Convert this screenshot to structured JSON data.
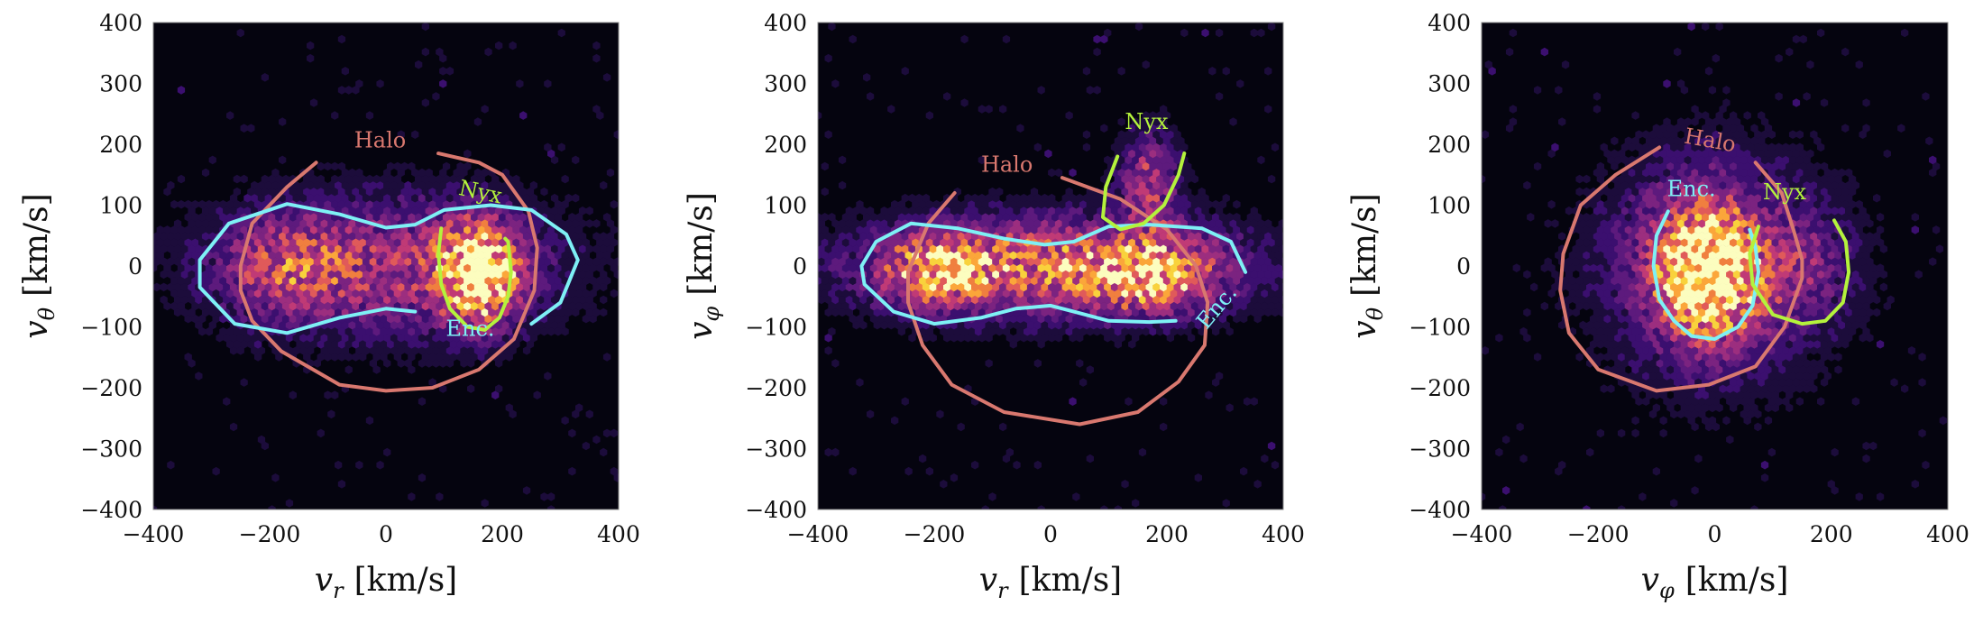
{
  "colors": {
    "background": "#05040f",
    "halo": "#d9786f",
    "enc": "#7ef0f5",
    "nyx": "#b4f23c",
    "colormap": [
      "#05040f",
      "#1c0c3b",
      "#3b0f6f",
      "#5d1a7d",
      "#7b2380",
      "#9c2e7f",
      "#c03a76",
      "#e05a5a",
      "#f07f3f",
      "#fba63a",
      "#f9d23c",
      "#fcfdbf"
    ]
  },
  "chart_data": [
    {
      "type": "heatmap",
      "subtype": "hexbin-with-contours",
      "xlabel_var": "v",
      "xlabel_sub": "r",
      "xlabel_unit": "[km/s]",
      "ylabel_var": "v",
      "ylabel_sub": "θ",
      "ylabel_unit": "[km/s]",
      "xlim": [
        -400,
        400
      ],
      "ylim": [
        -400,
        400
      ],
      "xticks": [
        "−400",
        "−200",
        "0",
        "200",
        "400"
      ],
      "yticks": [
        "400",
        "300",
        "200",
        "100",
        "0",
        "−100",
        "−200",
        "−300",
        "−400"
      ],
      "density_components": [
        {
          "cx": 0,
          "cy": 0,
          "sx": 200,
          "sy": 80,
          "w": 0.45
        },
        {
          "cx": 160,
          "cy": -10,
          "sx": 45,
          "sy": 55,
          "w": 1.0
        },
        {
          "cx": -170,
          "cy": 0,
          "sx": 70,
          "sy": 50,
          "w": 0.35
        }
      ],
      "contours": [
        {
          "name": "Halo",
          "label": "Halo",
          "color_key": "halo",
          "points": [
            [
              -120,
              170
            ],
            [
              -170,
              130
            ],
            [
              -230,
              70
            ],
            [
              -250,
              0
            ],
            [
              -250,
              -40
            ],
            [
              -230,
              -90
            ],
            [
              -180,
              -140
            ],
            [
              -80,
              -195
            ],
            [
              0,
              -205
            ],
            [
              80,
              -200
            ],
            [
              160,
              -170
            ],
            [
              220,
              -120
            ],
            [
              255,
              -40
            ],
            [
              260,
              30
            ],
            [
              245,
              90
            ],
            [
              200,
              150
            ],
            [
              160,
              170
            ],
            [
              90,
              185
            ]
          ],
          "label_pos": [
            -10,
            195
          ]
        },
        {
          "name": "Enc.",
          "label": "Enc.",
          "color_key": "enc",
          "points": [
            [
              50,
              -75
            ],
            [
              0,
              -70
            ],
            [
              -80,
              -85
            ],
            [
              -170,
              -110
            ],
            [
              -260,
              -95
            ],
            [
              -320,
              -35
            ],
            [
              -320,
              10
            ],
            [
              -270,
              70
            ],
            [
              -170,
              102
            ],
            [
              -80,
              85
            ],
            [
              0,
              63
            ],
            [
              50,
              68
            ],
            [
              100,
              92
            ],
            [
              180,
              100
            ],
            [
              250,
              92
            ],
            [
              310,
              52
            ],
            [
              330,
              10
            ],
            [
              300,
              -60
            ],
            [
              250,
              -95
            ]
          ],
          "label_pos": [
            145,
            -115
          ]
        },
        {
          "name": "Nyx",
          "label": "Nyx",
          "color_key": "nyx",
          "points": [
            [
              95,
              62
            ],
            [
              90,
              20
            ],
            [
              95,
              -30
            ],
            [
              110,
              -70
            ],
            [
              140,
              -100
            ],
            [
              170,
              -105
            ],
            [
              195,
              -85
            ],
            [
              210,
              -50
            ],
            [
              215,
              -10
            ],
            [
              210,
              40
            ],
            [
              205,
              45
            ]
          ],
          "label_pos": [
            160,
            110
          ]
        }
      ]
    },
    {
      "type": "heatmap",
      "subtype": "hexbin-with-contours",
      "xlabel_var": "v",
      "xlabel_sub": "r",
      "xlabel_unit": "[km/s]",
      "ylabel_var": "v",
      "ylabel_sub": "φ",
      "ylabel_unit": "[km/s]",
      "xlim": [
        -400,
        400
      ],
      "ylim": [
        -400,
        400
      ],
      "xticks": [
        "−400",
        "−200",
        "0",
        "200",
        "400"
      ],
      "yticks": [
        "400",
        "300",
        "200",
        "100",
        "0",
        "−100",
        "−200",
        "−300",
        "−400"
      ],
      "density_components": [
        {
          "cx": 0,
          "cy": 0,
          "sx": 220,
          "sy": 55,
          "w": 0.7
        },
        {
          "cx": -200,
          "cy": -10,
          "sx": 60,
          "sy": 40,
          "w": 0.5
        },
        {
          "cx": 180,
          "cy": -20,
          "sx": 70,
          "sy": 40,
          "w": 0.5
        },
        {
          "cx": 170,
          "cy": 140,
          "sx": 35,
          "sy": 60,
          "w": 0.45
        }
      ],
      "contours": [
        {
          "name": "Halo",
          "label": "Halo",
          "color_key": "halo",
          "points": [
            [
              -165,
              120
            ],
            [
              -210,
              70
            ],
            [
              -245,
              -10
            ],
            [
              -245,
              -60
            ],
            [
              -220,
              -130
            ],
            [
              -170,
              -195
            ],
            [
              -80,
              -240
            ],
            [
              50,
              -260
            ],
            [
              150,
              -240
            ],
            [
              220,
              -190
            ],
            [
              265,
              -130
            ],
            [
              270,
              -60
            ],
            [
              250,
              0
            ],
            [
              200,
              60
            ],
            [
              120,
              110
            ],
            [
              20,
              145
            ]
          ],
          "label_pos": [
            -75,
            155
          ]
        },
        {
          "name": "Enc.",
          "label": "Enc.",
          "color_key": "enc",
          "points": [
            [
              215,
              -90
            ],
            [
              170,
              -92
            ],
            [
              100,
              -90
            ],
            [
              40,
              -75
            ],
            [
              0,
              -65
            ],
            [
              -60,
              -70
            ],
            [
              -120,
              -85
            ],
            [
              -200,
              -95
            ],
            [
              -270,
              -75
            ],
            [
              -320,
              -30
            ],
            [
              -325,
              0
            ],
            [
              -300,
              40
            ],
            [
              -240,
              70
            ],
            [
              -160,
              62
            ],
            [
              -80,
              45
            ],
            [
              -10,
              35
            ],
            [
              40,
              40
            ],
            [
              100,
              65
            ],
            [
              170,
              68
            ],
            [
              260,
              62
            ],
            [
              310,
              40
            ],
            [
              335,
              -10
            ]
          ],
          "label_pos": [
            295,
            -75
          ]
        },
        {
          "name": "Nyx",
          "label": "Nyx",
          "color_key": "nyx",
          "points": [
            [
              115,
              180
            ],
            [
              95,
              130
            ],
            [
              90,
              80
            ],
            [
              120,
              60
            ],
            [
              160,
              70
            ],
            [
              195,
              100
            ],
            [
              220,
              150
            ],
            [
              230,
              185
            ]
          ],
          "label_pos": [
            165,
            225
          ]
        }
      ]
    },
    {
      "type": "heatmap",
      "subtype": "hexbin-with-contours",
      "xlabel_var": "v",
      "xlabel_sub": "φ",
      "xlabel_unit": "[km/s]",
      "ylabel_var": "v",
      "ylabel_sub": "θ",
      "ylabel_unit": "[km/s]",
      "xlim": [
        -400,
        400
      ],
      "ylim": [
        -400,
        400
      ],
      "xticks": [
        "−400",
        "−200",
        "0",
        "200",
        "400"
      ],
      "yticks": [
        "400",
        "300",
        "200",
        "100",
        "0",
        "−100",
        "−200",
        "−300",
        "−400"
      ],
      "density_components": [
        {
          "cx": -15,
          "cy": -10,
          "sx": 60,
          "sy": 75,
          "w": 1.0
        },
        {
          "cx": 0,
          "cy": 0,
          "sx": 140,
          "sy": 130,
          "w": 0.35
        },
        {
          "cx": 150,
          "cy": 0,
          "sx": 60,
          "sy": 60,
          "w": 0.2
        }
      ],
      "contours": [
        {
          "name": "Halo",
          "label": "Halo",
          "color_key": "halo",
          "points": [
            [
              -95,
              195
            ],
            [
              -170,
              150
            ],
            [
              -230,
              100
            ],
            [
              -260,
              20
            ],
            [
              -265,
              -40
            ],
            [
              -250,
              -110
            ],
            [
              -200,
              -170
            ],
            [
              -100,
              -205
            ],
            [
              -10,
              -195
            ],
            [
              70,
              -165
            ],
            [
              120,
              -100
            ],
            [
              150,
              -20
            ],
            [
              150,
              10
            ],
            [
              135,
              60
            ],
            [
              115,
              120
            ],
            [
              70,
              170
            ]
          ],
          "label_pos": [
            -10,
            195
          ]
        },
        {
          "name": "Enc.",
          "label": "Enc.",
          "color_key": "enc",
          "points": [
            [
              -80,
              90
            ],
            [
              -100,
              50
            ],
            [
              -105,
              0
            ],
            [
              -95,
              -55
            ],
            [
              -70,
              -90
            ],
            [
              -40,
              -115
            ],
            [
              0,
              -120
            ],
            [
              40,
              -100
            ],
            [
              65,
              -65
            ],
            [
              75,
              -10
            ],
            [
              70,
              30
            ],
            [
              60,
              60
            ]
          ],
          "label_pos": [
            -40,
            115
          ]
        },
        {
          "name": "Nyx",
          "label": "Nyx",
          "color_key": "nyx",
          "points": [
            [
              75,
              65
            ],
            [
              60,
              20
            ],
            [
              65,
              -30
            ],
            [
              100,
              -80
            ],
            [
              150,
              -95
            ],
            [
              190,
              -90
            ],
            [
              220,
              -60
            ],
            [
              230,
              -10
            ],
            [
              225,
              40
            ],
            [
              205,
              75
            ]
          ],
          "label_pos": [
            120,
            110
          ]
        }
      ]
    }
  ]
}
